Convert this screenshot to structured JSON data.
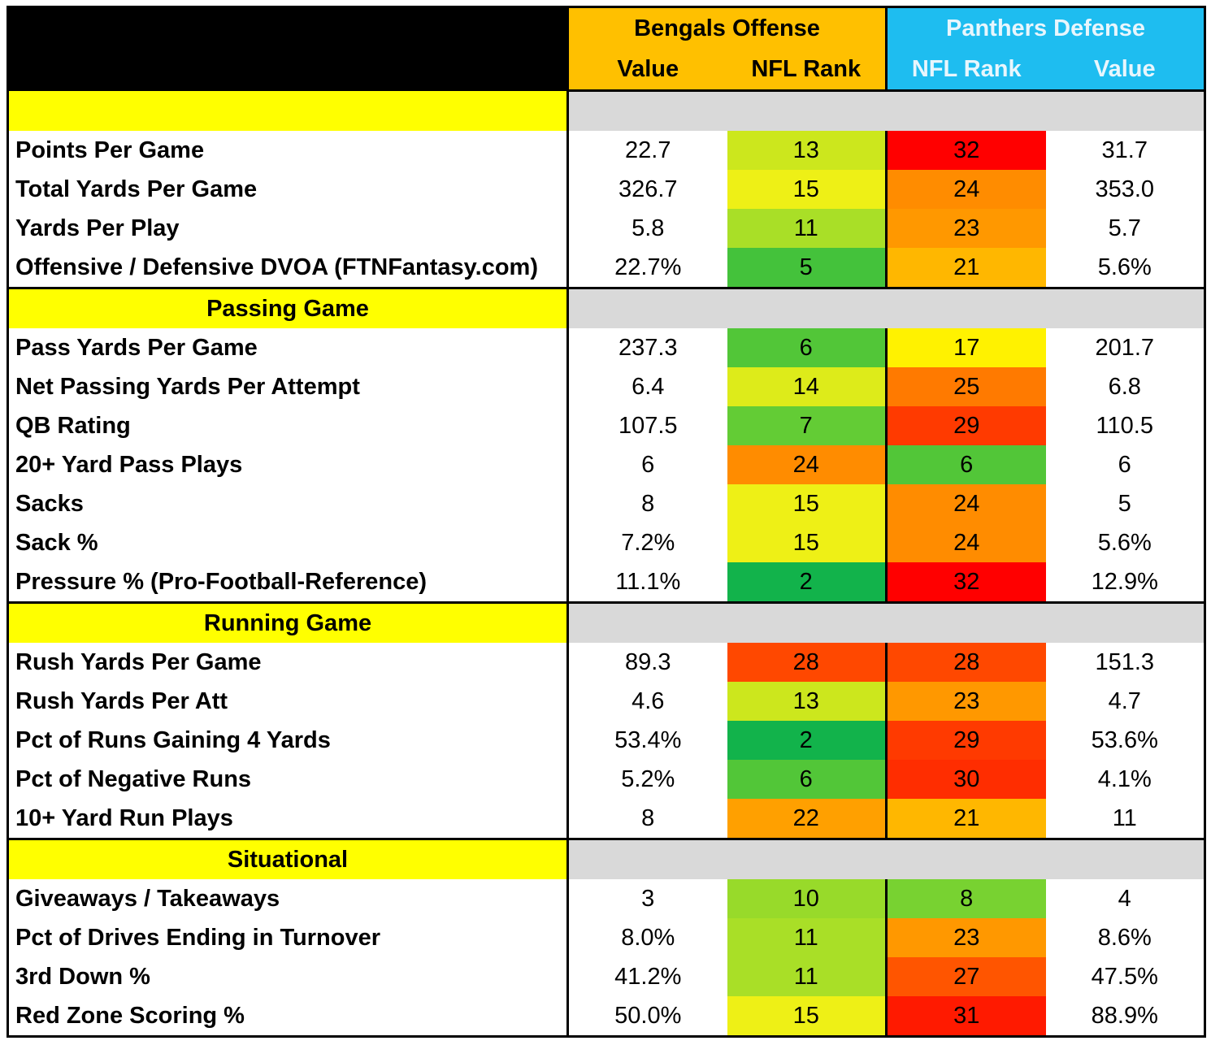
{
  "header": {
    "bengals_title": "Bengals Offense",
    "panthers_title": "Panthers Defense",
    "col_value_1": "Value",
    "col_rank_1": "NFL Rank",
    "col_rank_2": "NFL Rank",
    "col_value_2": "Value"
  },
  "colors": {
    "bengals_header": "#ffc000",
    "panthers_header": "#1ebdf0",
    "section_title": "#ffff00",
    "section_fill": "#d9d9d9",
    "rank_scale": {
      "1": "#00b050",
      "2": "#12b34b",
      "5": "#44c23b",
      "6": "#52c638",
      "7": "#63cc35",
      "8": "#78d231",
      "10": "#98da2a",
      "11": "#a9df27",
      "13": "#cce71d",
      "14": "#ddeb1a",
      "15": "#eef016",
      "17": "#fff200",
      "21": "#ffb700",
      "22": "#ffa000",
      "23": "#ff9800",
      "24": "#ff8c00",
      "25": "#ff7a00",
      "27": "#ff5500",
      "28": "#ff4800",
      "29": "#ff3a00",
      "30": "#ff2d00",
      "31": "#ff1a00",
      "32": "#ff0000"
    }
  },
  "sections": [
    {
      "title": "",
      "rows": [
        {
          "label": "Points Per Game",
          "off_value": "22.7",
          "off_rank": "13",
          "def_rank": "32",
          "def_value": "31.7"
        },
        {
          "label": "Total Yards Per Game",
          "off_value": "326.7",
          "off_rank": "15",
          "def_rank": "24",
          "def_value": "353.0"
        },
        {
          "label": "Yards Per Play",
          "off_value": "5.8",
          "off_rank": "11",
          "def_rank": "23",
          "def_value": "5.7"
        },
        {
          "label": "Offensive / Defensive DVOA (FTNFantasy.com)",
          "off_value": "22.7%",
          "off_rank": "5",
          "def_rank": "21",
          "def_value": "5.6%"
        }
      ]
    },
    {
      "title": "Passing Game",
      "rows": [
        {
          "label": "Pass Yards Per Game",
          "off_value": "237.3",
          "off_rank": "6",
          "def_rank": "17",
          "def_value": "201.7"
        },
        {
          "label": "Net Passing Yards Per Attempt",
          "off_value": "6.4",
          "off_rank": "14",
          "def_rank": "25",
          "def_value": "6.8"
        },
        {
          "label": "QB Rating",
          "off_value": "107.5",
          "off_rank": "7",
          "def_rank": "29",
          "def_value": "110.5"
        },
        {
          "label": "20+ Yard Pass Plays",
          "off_value": "6",
          "off_rank": "24",
          "def_rank": "6",
          "def_value": "6"
        },
        {
          "label": "Sacks",
          "off_value": "8",
          "off_rank": "15",
          "def_rank": "24",
          "def_value": "5"
        },
        {
          "label": "Sack %",
          "off_value": "7.2%",
          "off_rank": "15",
          "def_rank": "24",
          "def_value": "5.6%"
        },
        {
          "label": "Pressure % (Pro-Football-Reference)",
          "off_value": "11.1%",
          "off_rank": "2",
          "def_rank": "32",
          "def_value": "12.9%"
        }
      ]
    },
    {
      "title": "Running Game",
      "rows": [
        {
          "label": "Rush Yards Per Game",
          "off_value": "89.3",
          "off_rank": "28",
          "def_rank": "28",
          "def_value": "151.3"
        },
        {
          "label": "Rush Yards Per Att",
          "off_value": "4.6",
          "off_rank": "13",
          "def_rank": "23",
          "def_value": "4.7"
        },
        {
          "label": "Pct of Runs Gaining 4 Yards",
          "off_value": "53.4%",
          "off_rank": "2",
          "def_rank": "29",
          "def_value": "53.6%"
        },
        {
          "label": "Pct of Negative Runs",
          "off_value": "5.2%",
          "off_rank": "6",
          "def_rank": "30",
          "def_value": "4.1%"
        },
        {
          "label": "10+ Yard Run Plays",
          "off_value": "8",
          "off_rank": "22",
          "def_rank": "21",
          "def_value": "11"
        }
      ]
    },
    {
      "title": "Situational",
      "rows": [
        {
          "label": "Giveaways / Takeaways",
          "off_value": "3",
          "off_rank": "10",
          "def_rank": "8",
          "def_value": "4"
        },
        {
          "label": "Pct of Drives Ending in Turnover",
          "off_value": "8.0%",
          "off_rank": "11",
          "def_rank": "23",
          "def_value": "8.6%"
        },
        {
          "label": "3rd Down %",
          "off_value": "41.2%",
          "off_rank": "11",
          "def_rank": "27",
          "def_value": "47.5%"
        },
        {
          "label": "Red Zone Scoring %",
          "off_value": "50.0%",
          "off_rank": "15",
          "def_rank": "31",
          "def_value": "88.9%"
        }
      ]
    }
  ]
}
